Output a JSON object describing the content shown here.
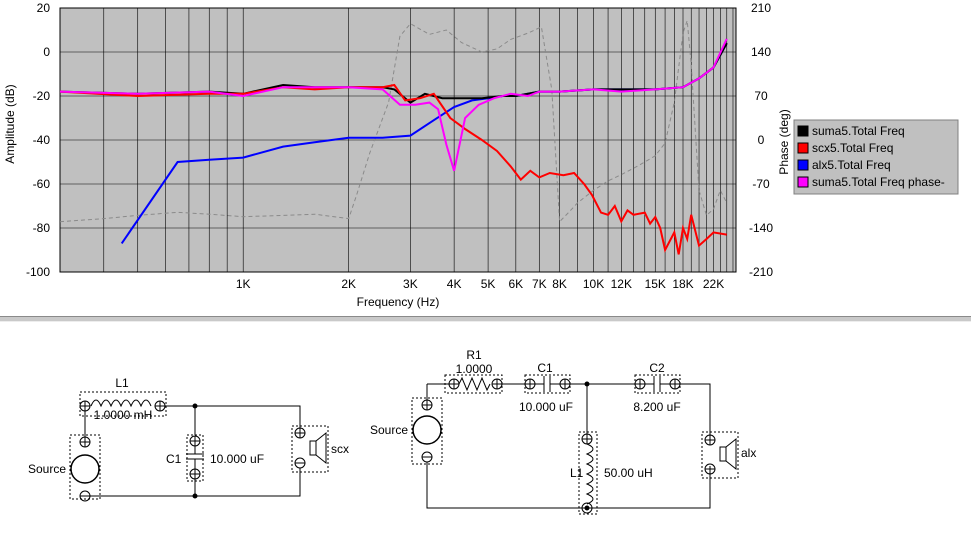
{
  "chart_data": {
    "type": "line",
    "xlabel": "Frequency (Hz)",
    "ylabel": "Amplitude (dB)",
    "y2label": "Phase (deg)",
    "xscale": "log",
    "xlim": [
      300,
      25500
    ],
    "ylim": [
      -100,
      20
    ],
    "y2lim": [
      -210,
      210
    ],
    "grid": true,
    "legend_position": "right",
    "y_ticks": [
      "20",
      "0",
      "-20",
      "-40",
      "-60",
      "-80",
      "-100"
    ],
    "y2_ticks": [
      "210",
      "140",
      "70",
      "0",
      "-70",
      "-140",
      "-210"
    ],
    "x_ticks": [
      {
        "v": 1000,
        "label": "1K"
      },
      {
        "v": 2000,
        "label": "2K"
      },
      {
        "v": 3000,
        "label": "3K"
      },
      {
        "v": 4000,
        "label": "4K"
      },
      {
        "v": 5000,
        "label": "5K"
      },
      {
        "v": 6000,
        "label": "6K"
      },
      {
        "v": 7000,
        "label": "7K"
      },
      {
        "v": 8000,
        "label": "8K"
      },
      {
        "v": 10000,
        "label": "10K"
      },
      {
        "v": 12000,
        "label": "12K"
      },
      {
        "v": 15000,
        "label": "15K"
      },
      {
        "v": 18000,
        "label": "18K"
      },
      {
        "v": 22000,
        "label": "22K"
      }
    ],
    "grid_lines": [
      300,
      400,
      500,
      600,
      700,
      800,
      900,
      1000,
      2000,
      3000,
      4000,
      5000,
      6000,
      7000,
      8000,
      9000,
      10000,
      11000,
      12000,
      13000,
      14000,
      15000,
      16000,
      17000,
      18000,
      19000,
      20000,
      21000,
      22000,
      23000,
      24000,
      25000
    ],
    "series": [
      {
        "name": "suma5.Total Freq",
        "color": "#000000",
        "axis": "left",
        "x": [
          300,
          500,
          800,
          1000,
          1300,
          1600,
          2000,
          2500,
          2700,
          3000,
          3300,
          3700,
          4200,
          4800,
          5500,
          6000,
          7000,
          8000,
          10000,
          12000,
          15000,
          18000,
          20000,
          22000,
          24000
        ],
        "y": [
          -18,
          -19,
          -18,
          -19,
          -15,
          -16,
          -16,
          -16,
          -17,
          -23,
          -19,
          -21,
          -21,
          -21,
          -20,
          -20,
          -18,
          -18,
          -17,
          -17,
          -17,
          -16,
          -12,
          -7,
          4
        ]
      },
      {
        "name": "scx5.Total Freq",
        "color": "#ff0000",
        "axis": "left",
        "x": [
          300,
          500,
          800,
          1000,
          1300,
          1600,
          2000,
          2500,
          2700,
          2900,
          3200,
          3500,
          3900,
          4300,
          4800,
          5300,
          5800,
          6200,
          6600,
          7000,
          7500,
          8200,
          8800,
          9400,
          9900,
          10500,
          11000,
          11500,
          12000,
          12500,
          13000,
          14000,
          14500,
          15000,
          15500,
          16000,
          17000,
          17500,
          18000,
          18500,
          19000,
          20000,
          21000,
          22000,
          24000
        ],
        "y": [
          -18,
          -20,
          -19,
          -19,
          -16,
          -17,
          -16,
          -16,
          -15,
          -22,
          -21,
          -19,
          -30,
          -35,
          -40,
          -45,
          -52,
          -58,
          -54,
          -57,
          -55,
          -56,
          -55,
          -60,
          -65,
          -73,
          -74,
          -70,
          -77,
          -72,
          -74,
          -73,
          -78,
          -75,
          -80,
          -90,
          -82,
          -92,
          -80,
          -85,
          -74,
          -88,
          -85,
          -82,
          -83
        ]
      },
      {
        "name": "alx5.Total Freq",
        "color": "#0000ff",
        "axis": "left",
        "x": [
          450,
          650,
          800,
          1000,
          1300,
          1600,
          2000,
          2500,
          3000,
          3500,
          4000,
          4500,
          5000,
          5500,
          6000,
          7000,
          8000,
          10000,
          12000,
          15000,
          18000,
          20000,
          22000,
          24000
        ],
        "y": [
          -87,
          -50,
          -49,
          -48,
          -43,
          -41,
          -39,
          -39,
          -38,
          -31,
          -25,
          -22,
          -21,
          -20,
          -20,
          -18,
          -18,
          -17,
          -17,
          -17,
          -16,
          -12,
          -7,
          4
        ]
      },
      {
        "name": "suma5.Total Freq phase-",
        "color": "#ff00ff",
        "axis": "left",
        "x": [
          300,
          500,
          800,
          1000,
          1300,
          1600,
          2000,
          2500,
          2800,
          3100,
          3400,
          3600,
          3800,
          4000,
          4300,
          4700,
          5200,
          5800,
          6500,
          7000,
          8000,
          10000,
          12000,
          15000,
          18000,
          20000,
          22000,
          24000
        ],
        "y": [
          -18,
          -19,
          -18,
          -20,
          -16,
          -16,
          -16,
          -17,
          -24,
          -24,
          -23,
          -26,
          -42,
          -54,
          -30,
          -24,
          -21,
          -19,
          -20,
          -18,
          -18,
          -17,
          -18,
          -17,
          -16,
          -12,
          -7,
          6
        ]
      },
      {
        "name": "phase",
        "color": "#8a8a8a",
        "axis": "right",
        "dash": "4 3",
        "x": [
          300,
          400,
          500,
          650,
          800,
          1000,
          1300,
          1600,
          2000,
          2100,
          2300,
          2600,
          2800,
          3000,
          3400,
          3800,
          4200,
          4800,
          5300,
          5800,
          6500,
          7100,
          7600,
          8000,
          8500,
          9000,
          10000,
          11000,
          12000,
          13000,
          14000,
          15000,
          16000,
          17000,
          18000,
          18500,
          19000,
          20000,
          21000,
          22000,
          23000,
          24000
        ],
        "y": [
          -130,
          -125,
          -120,
          -115,
          -118,
          -122,
          -120,
          -118,
          -125,
          -90,
          -20,
          60,
          165,
          185,
          168,
          175,
          155,
          140,
          145,
          160,
          170,
          180,
          80,
          -130,
          -115,
          -100,
          -80,
          -65,
          -55,
          -45,
          -35,
          -25,
          -5,
          60,
          170,
          190,
          120,
          -80,
          -120,
          -110,
          -80,
          -100
        ]
      }
    ]
  },
  "legend_items": [
    {
      "label": "suma5.Total Freq",
      "color": "#000000"
    },
    {
      "label": "scx5.Total Freq",
      "color": "#ff0000"
    },
    {
      "label": "alx5.Total Freq",
      "color": "#0000ff"
    },
    {
      "label": "suma5.Total Freq phase-",
      "color": "#ff00ff"
    }
  ],
  "schematic": {
    "left": {
      "inductor_name": "L1",
      "inductor_value": "1.0000 mH",
      "capacitor_name": "C1",
      "capacitor_value": "10.000 uF",
      "source_label": "Source",
      "speaker_label": "scx"
    },
    "right": {
      "resistor_name": "R1",
      "resistor_value": "1.0000",
      "capacitor1_name": "C1",
      "capacitor1_value": "10.000 uF",
      "capacitor2_name": "C2",
      "capacitor2_value": "8.200 uF",
      "inductor_name": "L1",
      "inductor_value": "50.00 uH",
      "source_label": "Source",
      "speaker_label": "alx"
    },
    "plus_sign": "+"
  }
}
